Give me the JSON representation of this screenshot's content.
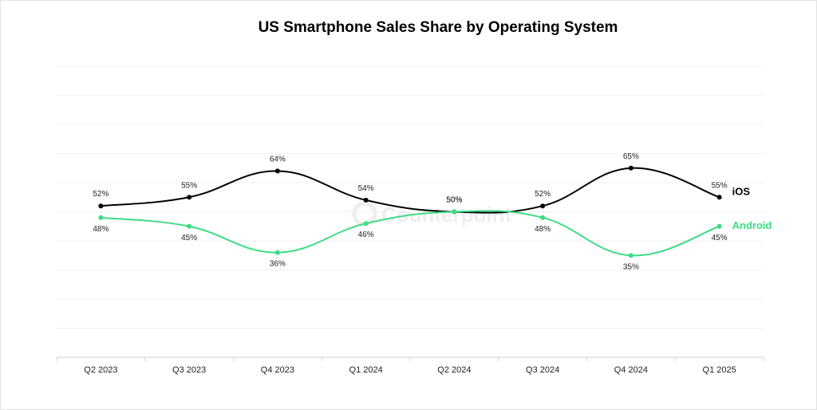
{
  "chart_data": {
    "type": "line",
    "title": "US Smartphone Sales Share by Operating System",
    "categories": [
      "Q2 2023",
      "Q3 2023",
      "Q4 2023",
      "Q1 2024",
      "Q2 2024",
      "Q3 2024",
      "Q4 2024",
      "Q1 2025"
    ],
    "series": [
      {
        "name": "iOS",
        "values": [
          52,
          55,
          64,
          54,
          50,
          52,
          65,
          55
        ],
        "labels": [
          "52%",
          "55%",
          "64%",
          "54%",
          "50%",
          "52%",
          "65%",
          "55%"
        ],
        "color": "#000000"
      },
      {
        "name": "Android",
        "values": [
          48,
          45,
          36,
          46,
          50,
          48,
          35,
          45
        ],
        "labels": [
          "48%",
          "45%",
          "36%",
          "46%",
          "50%",
          "48%",
          "35%",
          "45%"
        ],
        "color": "#3ddc84"
      }
    ],
    "smooth": true,
    "grid": "horizontal",
    "legend": "end-of-line labels",
    "watermark": "Counterpoint",
    "watermark_icon": "counterpoint-logo-icon"
  }
}
